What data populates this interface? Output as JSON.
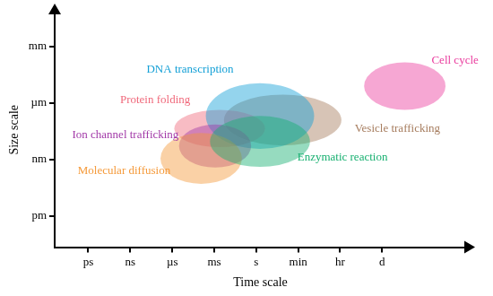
{
  "chart_data": {
    "type": "ellipse",
    "x_label": "Time scale",
    "y_label": "Size scale",
    "xlim": [
      0.2,
      10
    ],
    "ylim": [
      0.45,
      4.6
    ],
    "xticks": [
      {
        "value": 1,
        "label": "ps"
      },
      {
        "value": 2,
        "label": "ns"
      },
      {
        "value": 3,
        "label": "µs"
      },
      {
        "value": 4,
        "label": "ms"
      },
      {
        "value": 5,
        "label": "s"
      },
      {
        "value": 6,
        "label": "min"
      },
      {
        "value": 7,
        "label": "hr"
      },
      {
        "value": 8,
        "label": "d"
      }
    ],
    "yticks": [
      {
        "value": 1,
        "label": "pm"
      },
      {
        "value": 2,
        "label": "nm"
      },
      {
        "value": 3,
        "label": "µm"
      },
      {
        "value": 4,
        "label": "mm"
      }
    ],
    "grid": false,
    "series": [
      {
        "name": "Vesicle trafficking",
        "color": "#a67c5e",
        "x": 5.63,
        "y": 2.7,
        "x_radius": 1.4,
        "y_radius": 0.45
      },
      {
        "name": "Protein folding",
        "color": "#f06a7c",
        "x": 4.13,
        "y": 2.55,
        "x_radius": 1.08,
        "y_radius": 0.33
      },
      {
        "name": "DNA transcription",
        "color": "#129fd6",
        "x": 5.09,
        "y": 2.77,
        "x_radius": 1.29,
        "y_radius": 0.58
      },
      {
        "name": "Ion channel trafficking",
        "color": "#a23aa8",
        "x": 4.02,
        "y": 2.24,
        "x_radius": 0.86,
        "y_radius": 0.38
      },
      {
        "name": "Molecular diffusion",
        "color": "#f59a3a",
        "x": 3.69,
        "y": 2.02,
        "x_radius": 0.97,
        "y_radius": 0.45
      },
      {
        "name": "Enzymatic reaction",
        "color": "#17b070",
        "x": 5.09,
        "y": 2.32,
        "x_radius": 1.19,
        "y_radius": 0.45
      },
      {
        "name": "Cell cycle",
        "color": "#ea3c9e",
        "x": 8.54,
        "y": 3.3,
        "x_radius": 0.97,
        "y_radius": 0.42
      }
    ]
  }
}
